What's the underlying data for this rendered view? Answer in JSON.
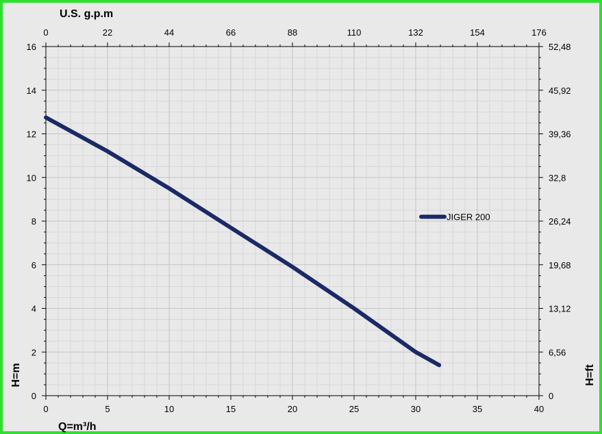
{
  "chart_data": {
    "type": "line",
    "axes": {
      "bottom": {
        "label": "Q=m³/h",
        "range": [
          0,
          40
        ],
        "ticks": [
          "0",
          "5",
          "10",
          "15",
          "20",
          "25",
          "30",
          "35",
          "40"
        ]
      },
      "top": {
        "label": "U.S. g.p.m",
        "range": [
          0,
          176
        ],
        "ticks": [
          "0",
          "22",
          "44",
          "66",
          "88",
          "110",
          "132",
          "154",
          "176"
        ]
      },
      "left": {
        "label": "H=m",
        "range": [
          0,
          16
        ],
        "ticks": [
          "0",
          "2",
          "4",
          "6",
          "8",
          "10",
          "12",
          "14",
          "16"
        ]
      },
      "right": {
        "label": "H=ft",
        "range": [
          0,
          52.48
        ],
        "ticks": [
          "0",
          "6,56",
          "13,12",
          "19,68",
          "26,24",
          "32,8",
          "39,36",
          "45,92",
          "52,48"
        ]
      }
    },
    "grid": true,
    "legend_position": "right",
    "series": [
      {
        "name": "JIGER 200",
        "color": "#1b2a66",
        "points": [
          [
            0,
            12.75
          ],
          [
            5,
            11.2
          ],
          [
            10,
            9.5
          ],
          [
            15,
            7.7
          ],
          [
            20,
            5.9
          ],
          [
            25,
            4.0
          ],
          [
            30,
            2.0
          ],
          [
            31.9,
            1.4
          ]
        ]
      }
    ]
  }
}
